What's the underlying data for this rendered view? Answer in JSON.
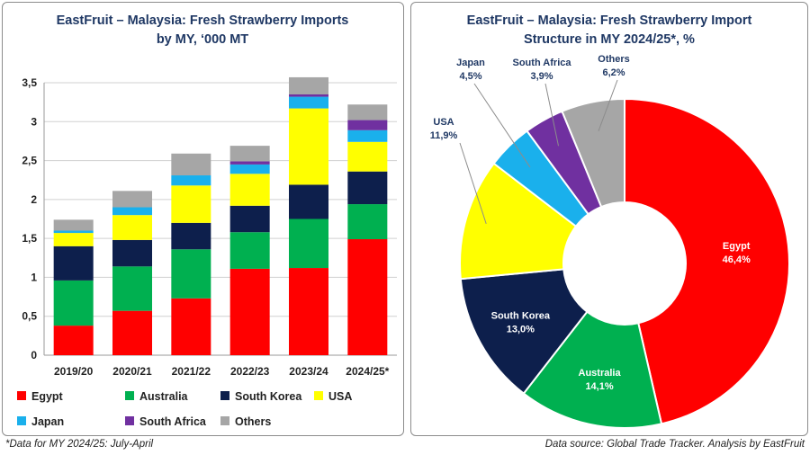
{
  "colors": {
    "Egypt": "#ff0000",
    "Australia": "#00b050",
    "South Korea": "#0d1f4c",
    "USA": "#ffff00",
    "Japan": "#1ab0ec",
    "South Africa": "#7030a0",
    "Others": "#a6a6a6"
  },
  "chart_data": [
    {
      "type": "bar",
      "stacked": true,
      "title": [
        "EastFruit – Malaysia: Fresh Strawberry Imports",
        "by MY, ‘000 MT"
      ],
      "categories": [
        "2019/20",
        "2020/21",
        "2021/22",
        "2022/23",
        "2023/24",
        "2024/25*"
      ],
      "ylim": [
        0,
        3.5
      ],
      "yticks": [
        0,
        0.5,
        1,
        1.5,
        2,
        2.5,
        3,
        3.5
      ],
      "ytick_labels": [
        "0",
        "0,5",
        "1",
        "1,5",
        "2",
        "2,5",
        "3",
        "3,5"
      ],
      "grid": true,
      "legend_position": "bottom",
      "series": [
        {
          "name": "Egypt",
          "values": [
            0.38,
            0.57,
            0.73,
            1.11,
            1.12,
            1.49
          ]
        },
        {
          "name": "Australia",
          "values": [
            0.58,
            0.57,
            0.63,
            0.47,
            0.63,
            0.45
          ]
        },
        {
          "name": "South Korea",
          "values": [
            0.44,
            0.34,
            0.34,
            0.34,
            0.44,
            0.42
          ]
        },
        {
          "name": "USA",
          "values": [
            0.17,
            0.32,
            0.48,
            0.41,
            0.98,
            0.38
          ]
        },
        {
          "name": "Japan",
          "values": [
            0.03,
            0.1,
            0.13,
            0.12,
            0.15,
            0.15
          ]
        },
        {
          "name": "South Africa",
          "values": [
            0.0,
            0.0,
            0.0,
            0.04,
            0.03,
            0.13
          ]
        },
        {
          "name": "Others",
          "values": [
            0.14,
            0.21,
            0.28,
            0.2,
            0.22,
            0.2
          ]
        }
      ]
    },
    {
      "type": "pie",
      "donut": true,
      "title": [
        "EastFruit – Malaysia: Fresh Strawberry Import",
        "Structure in MY 2024/25*, %"
      ],
      "slices": [
        {
          "name": "Egypt",
          "value": 46.4,
          "label": "46,4%"
        },
        {
          "name": "Australia",
          "value": 14.1,
          "label": "14,1%"
        },
        {
          "name": "South Korea",
          "value": 13.0,
          "label": "13,0%"
        },
        {
          "name": "USA",
          "value": 11.9,
          "label": "11,9%"
        },
        {
          "name": "Japan",
          "value": 4.5,
          "label": "4,5%"
        },
        {
          "name": "South Africa",
          "value": 3.9,
          "label": "3,9%"
        },
        {
          "name": "Others",
          "value": 6.2,
          "label": "6,2%"
        }
      ]
    }
  ],
  "footnotes": {
    "left": "*Data for MY 2024/25: July-April",
    "right": "Data source: Global Trade Tracker. Analysis by  EastFruit"
  }
}
